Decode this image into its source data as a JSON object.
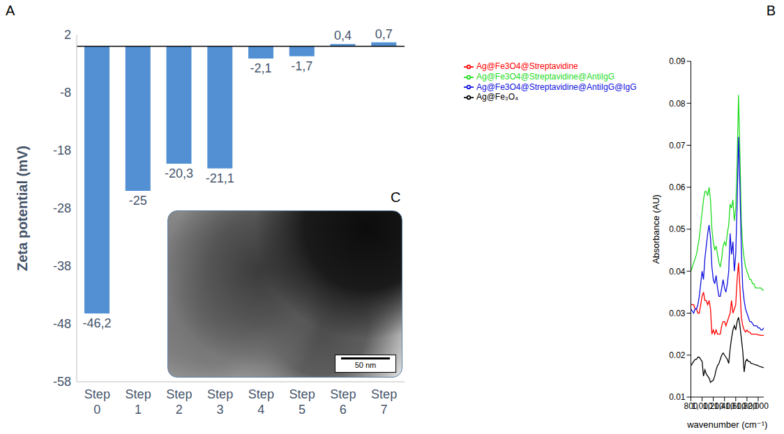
{
  "chart_data": [
    {
      "panel": "A",
      "type": "bar",
      "y_label": "Zeta potential (mV)",
      "categories": [
        "Step 0",
        "Step 1",
        "Step 2",
        "Step 3",
        "Step 4",
        "Step 5",
        "Step 6",
        "Step 7"
      ],
      "values": [
        -46.2,
        -25,
        -20.3,
        -21.1,
        -2.1,
        -1.7,
        0.4,
        0.7
      ],
      "value_labels": [
        "-46,2",
        "-25",
        "-20,3",
        "-21,1",
        "-2,1",
        "-1,7",
        "0,4",
        "0,7"
      ],
      "data_labels": true,
      "color": "#5290d3",
      "ylim": [
        -58,
        2
      ],
      "yticks": [
        -58,
        -48,
        -38,
        -28,
        -18,
        -8,
        2
      ]
    },
    {
      "panel": "B",
      "type": "line",
      "x_label": "wavenumber (cm⁻¹)",
      "y_label": "Absorbance (AU)",
      "legend": "top-left",
      "x": [
        800,
        825,
        850,
        875,
        900,
        925,
        950,
        975,
        1000,
        1025,
        1050,
        1075,
        1100,
        1125,
        1150,
        1175,
        1200,
        1225,
        1250,
        1275,
        1300,
        1325,
        1350,
        1375,
        1400,
        1425,
        1450,
        1475,
        1500,
        1525,
        1550,
        1575,
        1600,
        1625,
        1650,
        1675,
        1700,
        1725,
        1750,
        1775,
        1800,
        1825,
        1850,
        1875,
        1900,
        1925,
        1950,
        1975,
        2000,
        2025,
        2050,
        2075,
        2100
      ],
      "xlim": [
        800,
        2100
      ],
      "xticks": [
        800,
        {
          "value": 1000,
          "label": "1,000"
        },
        {
          "value": 1200,
          "label": "1,200"
        },
        {
          "value": 1400,
          "label": "1,400"
        },
        {
          "value": 1600,
          "label": "1,600"
        },
        {
          "value": 1800,
          "label": "1,800"
        },
        {
          "value": 2000,
          "label": "2,000"
        }
      ],
      "ylim": [
        0.01,
        0.09
      ],
      "yticks": [
        0.01,
        0.02,
        0.03,
        0.04,
        0.05,
        0.06,
        0.07,
        0.08,
        0.09
      ],
      "series": [
        {
          "name": "Ag@Fe₃O₄",
          "color": "#000000",
          "values": [
            0.0175,
            0.018,
            0.0185,
            0.019,
            0.019,
            0.0195,
            0.0195,
            0.019,
            0.0185,
            0.015,
            0.0165,
            0.0155,
            0.015,
            0.0145,
            0.0135,
            0.0138,
            0.014,
            0.015,
            0.0165,
            0.0175,
            0.018,
            0.019,
            0.02,
            0.0205,
            0.02,
            0.0195,
            0.019,
            0.018,
            0.0215,
            0.024,
            0.026,
            0.027,
            0.026,
            0.028,
            0.029,
            0.027,
            0.024,
            0.021,
            0.016,
            0.0185,
            0.019,
            0.0185,
            0.0185,
            0.018,
            0.018,
            0.0178,
            0.0177,
            0.0176,
            0.0175,
            0.0173,
            0.0172,
            0.0171,
            0.017
          ]
        },
        {
          "name": "Ag@Fe3O4@Streptavidine",
          "color": "#ff0000",
          "values": [
            0.032,
            0.032,
            0.032,
            0.031,
            0.031,
            0.03,
            0.03,
            0.032,
            0.034,
            0.035,
            0.033,
            0.033,
            0.032,
            0.033,
            0.031,
            0.025,
            0.026,
            0.025,
            0.026,
            0.025,
            0.025,
            0.025,
            0.027,
            0.028,
            0.028,
            0.027,
            0.028,
            0.029,
            0.03,
            0.033,
            0.03,
            0.031,
            0.032,
            0.038,
            0.042,
            0.036,
            0.029,
            0.027,
            0.026,
            0.0255,
            0.026,
            0.0255,
            0.0255,
            0.025,
            0.025,
            0.025,
            0.025,
            0.025,
            0.0248,
            0.0248,
            0.0247,
            0.0247,
            0.0247
          ]
        },
        {
          "name": "Ag@Fe3O4@Streptavidine@AntiIgG",
          "color": "#1fdc1f",
          "values": [
            0.04,
            0.041,
            0.042,
            0.043,
            0.044,
            0.046,
            0.048,
            0.051,
            0.054,
            0.057,
            0.059,
            0.059,
            0.058,
            0.06,
            0.057,
            0.05,
            0.047,
            0.045,
            0.046,
            0.044,
            0.042,
            0.041,
            0.043,
            0.046,
            0.047,
            0.046,
            0.049,
            0.051,
            0.056,
            0.055,
            0.057,
            0.052,
            0.055,
            0.066,
            0.082,
            0.068,
            0.052,
            0.046,
            0.043,
            0.041,
            0.04,
            0.039,
            0.038,
            0.038,
            0.037,
            0.037,
            0.036,
            0.036,
            0.036,
            0.036,
            0.036,
            0.0355,
            0.0355
          ]
        },
        {
          "name": "Ag@Fe3O4@Streptavidine@AntiIgG@IgG",
          "color": "#1010e0",
          "values": [
            0.031,
            0.0305,
            0.03,
            0.031,
            0.031,
            0.032,
            0.034,
            0.037,
            0.04,
            0.038,
            0.043,
            0.046,
            0.049,
            0.051,
            0.048,
            0.041,
            0.038,
            0.037,
            0.039,
            0.036,
            0.034,
            0.034,
            0.036,
            0.038,
            0.036,
            0.035,
            0.037,
            0.04,
            0.049,
            0.044,
            0.047,
            0.04,
            0.044,
            0.056,
            0.072,
            0.06,
            0.045,
            0.036,
            0.033,
            0.031,
            0.03,
            0.029,
            0.028,
            0.028,
            0.0275,
            0.027,
            0.027,
            0.027,
            0.0265,
            0.0265,
            0.026,
            0.026,
            0.0265
          ]
        }
      ]
    }
  ],
  "image": {
    "panel": "C",
    "scale_bar": "50 nm"
  }
}
